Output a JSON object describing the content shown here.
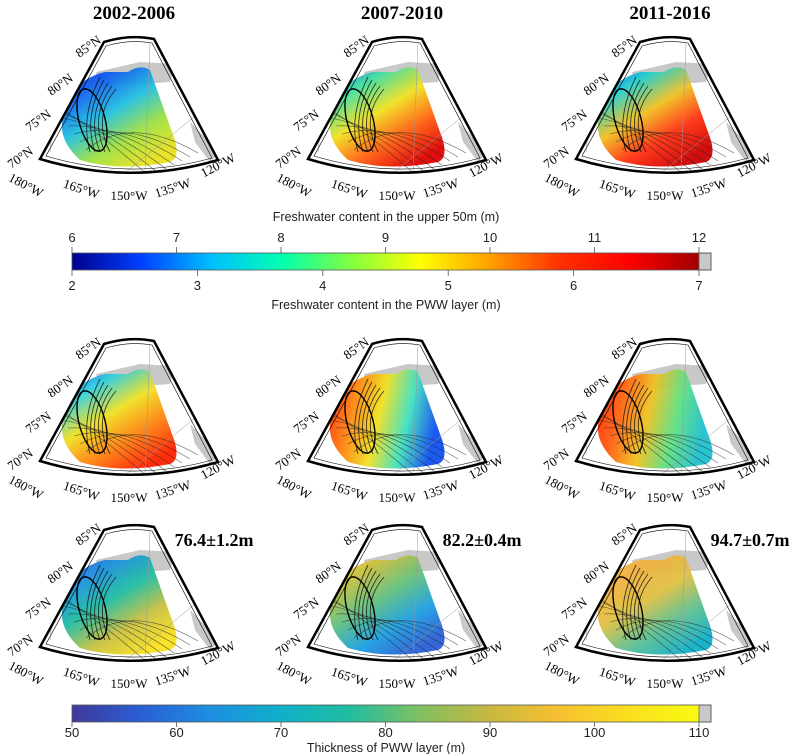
{
  "column_titles": [
    "2002-2006",
    "2007-2010",
    "2011-2016"
  ],
  "geo_labels": {
    "lat": [
      "85°N",
      "80°N",
      "75°N",
      "70°N"
    ],
    "lon": [
      "180°W",
      "165°W",
      "150°W",
      "135°W",
      "120°W"
    ]
  },
  "colorbar_top": {
    "title_top": "Freshwater content in the upper 50m (m)",
    "ticks_top": [
      "6",
      "7",
      "8",
      "9",
      "10",
      "11",
      "12"
    ],
    "ticks_bottom": [
      "2",
      "3",
      "4",
      "5",
      "6",
      "7"
    ],
    "title_bottom": "Freshwater content in the PWW layer (m)",
    "colormap": [
      "#00008f",
      "#0040ff",
      "#00bfff",
      "#00ffb0",
      "#80ff40",
      "#ffff00",
      "#ffa000",
      "#ff3000",
      "#ff0000",
      "#a00000"
    ]
  },
  "colorbar_bottom": {
    "title": "Thickness of PWW layer (m)",
    "ticks": [
      "50",
      "60",
      "70",
      "80",
      "90",
      "100",
      "110"
    ],
    "colormap": [
      "#3e3a9a",
      "#2a5fd6",
      "#1d8fe0",
      "#10b0c8",
      "#20bda0",
      "#80c060",
      "#c8b840",
      "#f8c030",
      "#f9e020",
      "#f9fb0e"
    ]
  },
  "rows": [
    {
      "name": "freshwater-upper-50m",
      "panels": [
        {
          "colors": [
            "#0a2ad8",
            "#1060f0",
            "#20c0e0",
            "#a0e040",
            "#e8e020"
          ],
          "annotation": null
        },
        {
          "colors": [
            "#1050f0",
            "#40e0a0",
            "#f0e020",
            "#ff6010",
            "#e00000"
          ],
          "annotation": null
        },
        {
          "colors": [
            "#1040e8",
            "#20d0d0",
            "#f0c020",
            "#ff3010",
            "#d00000"
          ],
          "annotation": null
        }
      ]
    },
    {
      "name": "freshwater-pww-layer",
      "panels": [
        {
          "colors": [
            "#1040e8",
            "#30d0e0",
            "#f0e020",
            "#ff8010",
            "#ff2000"
          ],
          "annotation": null
        },
        {
          "colors": [
            "#ff2000",
            "#ff8010",
            "#f0e020",
            "#40e0c0",
            "#1050f0"
          ],
          "annotation": null
        },
        {
          "colors": [
            "#ff2000",
            "#ff6010",
            "#f0c020",
            "#60e080",
            "#20c0d0"
          ],
          "annotation": null
        }
      ]
    },
    {
      "name": "pww-thickness",
      "panels": [
        {
          "colors": [
            "#2a4fc8",
            "#1d8fe0",
            "#20bda0",
            "#c8c040",
            "#f9e020"
          ],
          "annotation": "76.4±1.2m"
        },
        {
          "colors": [
            "#f0d030",
            "#c8c040",
            "#60c080",
            "#1d9fe0",
            "#2a5fd6"
          ],
          "annotation": "82.2±0.4m"
        },
        {
          "colors": [
            "#f8c030",
            "#f0b040",
            "#e0c040",
            "#60c090",
            "#10b0c8"
          ],
          "annotation": "94.7±0.7m"
        }
      ]
    }
  ]
}
